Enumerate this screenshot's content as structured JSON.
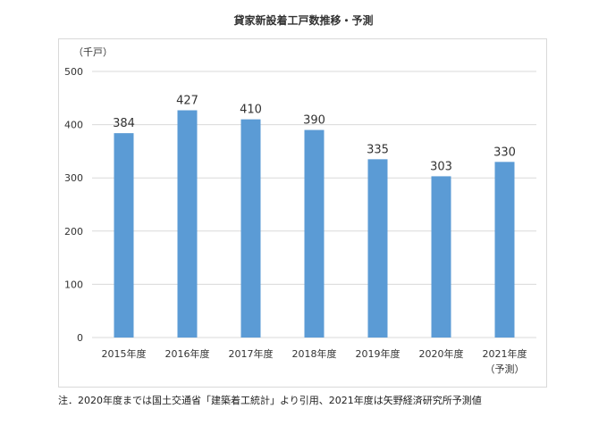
{
  "title": "貸家新設着工戸数推移・予測",
  "chart_data": {
    "type": "bar",
    "title": "貸家新設着工戸数推移・予測",
    "unit_label": "（千戸）",
    "categories": [
      "2015年度",
      "2016年度",
      "2017年度",
      "2018年度",
      "2019年度",
      "2020年度",
      "2021年度"
    ],
    "category_sublabels": [
      "",
      "",
      "",
      "",
      "",
      "",
      "（予測）"
    ],
    "values": [
      384,
      427,
      410,
      390,
      335,
      303,
      330
    ],
    "data_labels": [
      "384",
      "427",
      "410",
      "390",
      "335",
      "303",
      "330"
    ],
    "ylim": [
      0,
      500
    ],
    "yticks": [
      0,
      100,
      200,
      300,
      400,
      500
    ],
    "grid": true,
    "bar_color": "#5b9bd5",
    "grid_color": "#d9d9d9"
  },
  "footnote": "注．2020年度までは国土交通省「建築着工統計」より引用、2021年度は矢野経済研究所予測値"
}
